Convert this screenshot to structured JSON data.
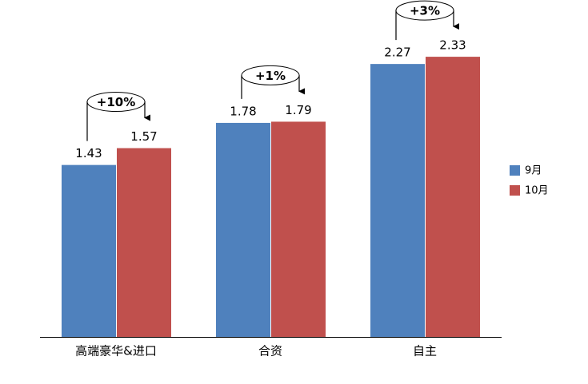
{
  "chart_data": {
    "type": "bar",
    "categories": [
      "高端豪华&进口",
      "合资",
      "自主"
    ],
    "series": [
      {
        "name": "9月",
        "color": "#4f81bd",
        "values": [
          1.43,
          1.78,
          2.27
        ]
      },
      {
        "name": "10月",
        "color": "#c0504d",
        "values": [
          1.57,
          1.79,
          2.33
        ]
      }
    ],
    "annotations": [
      "+10%",
      "+1%",
      "+3%"
    ],
    "legend": "right"
  }
}
